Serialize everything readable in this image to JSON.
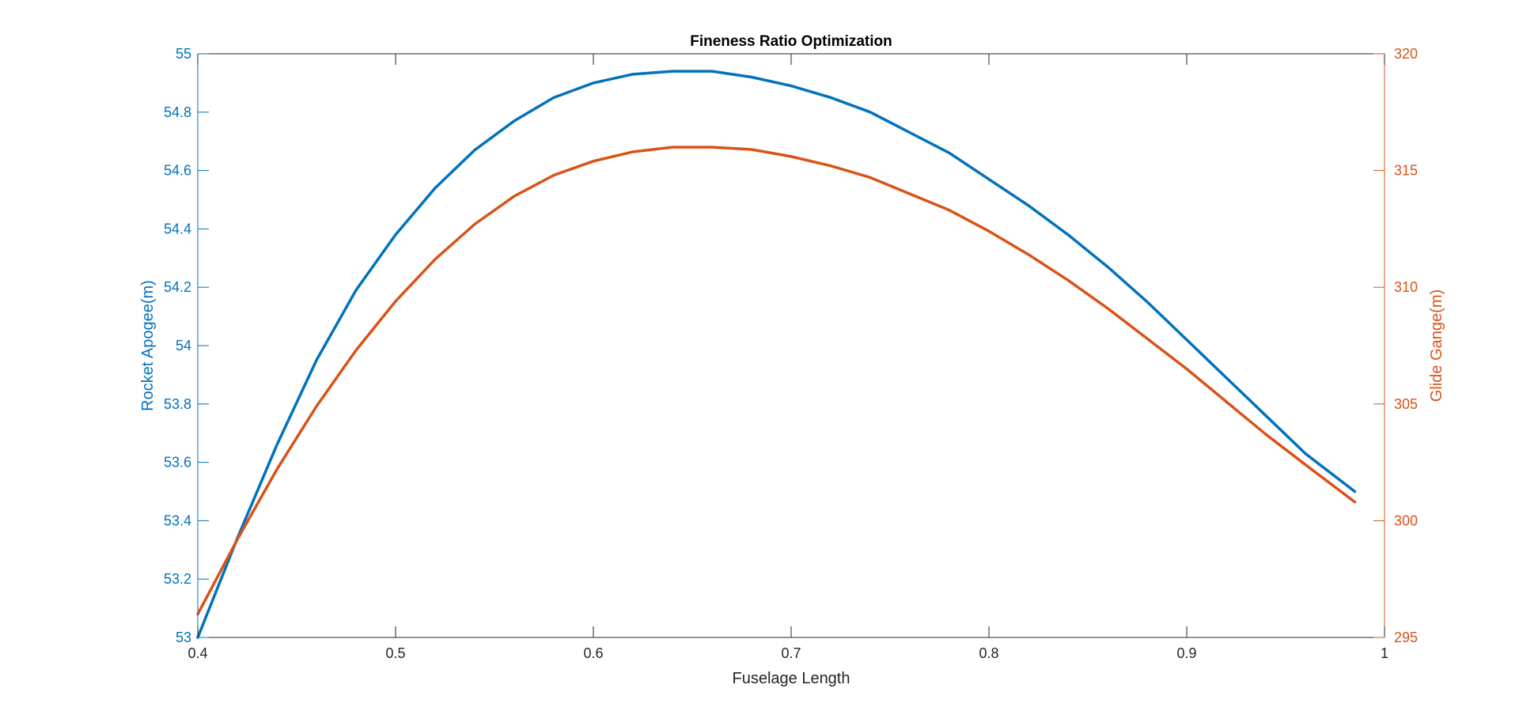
{
  "chart_data": {
    "type": "line",
    "title": "Fineness Ratio Optimization",
    "xlabel": "Fuselage Length",
    "xlim": [
      0.4,
      1
    ],
    "xticks": [
      0.4,
      0.5,
      0.6,
      0.7,
      0.8,
      0.9,
      1
    ],
    "xtick_labels": [
      "0.4",
      "0.5",
      "0.6",
      "0.7",
      "0.8",
      "0.9",
      "1"
    ],
    "grid": false,
    "legend": "none",
    "left_axis": {
      "label": "Rocket Apogee(m)",
      "color": "#0072BD",
      "ylim": [
        53,
        55
      ],
      "ticks": [
        53,
        53.2,
        53.4,
        53.6,
        53.8,
        54,
        54.2,
        54.4,
        54.6,
        54.8,
        55
      ],
      "tick_labels": [
        "53",
        "53.2",
        "53.4",
        "53.6",
        "53.8",
        "54",
        "54.2",
        "54.4",
        "54.6",
        "54.8",
        "55"
      ]
    },
    "right_axis": {
      "label": "Glide Gange(m)",
      "color": "#D95319",
      "ylim": [
        295,
        320
      ],
      "ticks": [
        295,
        300,
        305,
        310,
        315,
        320
      ],
      "tick_labels": [
        "295",
        "300",
        "305",
        "310",
        "315",
        "320"
      ]
    },
    "series": [
      {
        "axis": "left",
        "color": "#0072BD",
        "x": [
          0.4,
          0.42,
          0.44,
          0.46,
          0.48,
          0.5,
          0.52,
          0.54,
          0.56,
          0.58,
          0.6,
          0.62,
          0.64,
          0.65,
          0.66,
          0.68,
          0.7,
          0.72,
          0.74,
          0.76,
          0.78,
          0.8,
          0.82,
          0.84,
          0.86,
          0.88,
          0.9,
          0.92,
          0.94,
          0.96,
          0.985
        ],
        "y": [
          53.0,
          53.34,
          53.66,
          53.95,
          54.19,
          54.38,
          54.54,
          54.67,
          54.77,
          54.85,
          54.9,
          54.93,
          54.94,
          54.94,
          54.94,
          54.92,
          54.89,
          54.85,
          54.8,
          54.73,
          54.66,
          54.57,
          54.48,
          54.38,
          54.27,
          54.15,
          54.02,
          53.89,
          53.76,
          53.63,
          53.5
        ]
      },
      {
        "axis": "right",
        "color": "#D95319",
        "x": [
          0.4,
          0.42,
          0.44,
          0.46,
          0.48,
          0.5,
          0.52,
          0.54,
          0.56,
          0.58,
          0.6,
          0.62,
          0.64,
          0.66,
          0.68,
          0.7,
          0.72,
          0.74,
          0.76,
          0.78,
          0.8,
          0.82,
          0.84,
          0.86,
          0.88,
          0.9,
          0.92,
          0.94,
          0.96,
          0.985
        ],
        "y": [
          296.0,
          299.2,
          302.2,
          304.9,
          307.3,
          309.4,
          311.2,
          312.7,
          313.9,
          314.8,
          315.4,
          315.8,
          316.0,
          316.0,
          315.9,
          315.6,
          315.2,
          314.7,
          314.0,
          313.3,
          312.4,
          311.4,
          310.3,
          309.1,
          307.8,
          306.5,
          305.1,
          303.7,
          302.4,
          300.8
        ]
      }
    ]
  }
}
